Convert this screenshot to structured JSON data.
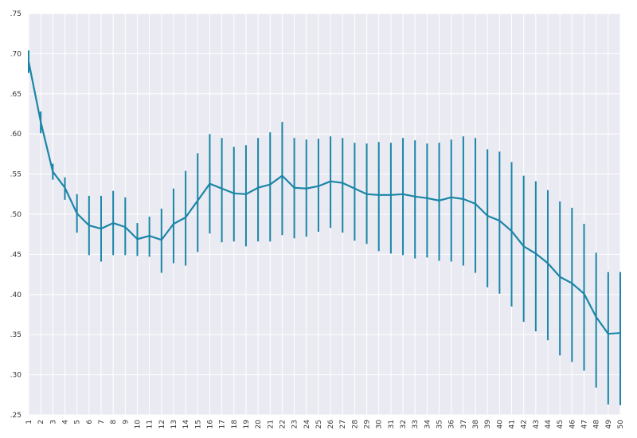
{
  "chart_data": {
    "type": "line",
    "title": "",
    "xlabel": "",
    "ylabel": "",
    "x": [
      1,
      2,
      3,
      4,
      5,
      6,
      7,
      8,
      9,
      10,
      11,
      12,
      13,
      14,
      15,
      16,
      17,
      18,
      19,
      20,
      21,
      22,
      23,
      24,
      25,
      26,
      27,
      28,
      29,
      30,
      31,
      32,
      33,
      34,
      35,
      36,
      37,
      38,
      39,
      40,
      41,
      42,
      43,
      44,
      45,
      46,
      47,
      48,
      49,
      50
    ],
    "x_tick_labels": [
      "1",
      "2",
      "3",
      "4",
      "5",
      "6",
      "7",
      "8",
      "9",
      "10",
      "11",
      "12",
      "13",
      "14",
      "15",
      "16",
      "17",
      "18",
      "19",
      "20",
      "21",
      "22",
      "23",
      "24",
      "25",
      "26",
      "27",
      "28",
      "29",
      "30",
      "31",
      "32",
      "33",
      "34",
      "35",
      "36",
      "37",
      "38",
      "39",
      "40",
      "41",
      "42",
      "43",
      "44",
      "45",
      "46",
      "47",
      "48",
      "49",
      "50"
    ],
    "ylim": [
      0.25,
      0.75
    ],
    "y_ticks": [
      0.25,
      0.3,
      0.35,
      0.4,
      0.45,
      0.5,
      0.55,
      0.6,
      0.65,
      0.7,
      0.75
    ],
    "y_tick_labels": [
      ".25",
      ".30",
      ".35",
      ".40",
      ".45",
      ".50",
      ".55",
      ".60",
      ".65",
      ".70",
      ".75"
    ],
    "grid": true,
    "series": [
      {
        "color": "#1a86a8",
        "mean": [
          0.69,
          0.615,
          0.553,
          0.533,
          0.501,
          0.486,
          0.482,
          0.489,
          0.484,
          0.469,
          0.473,
          0.468,
          0.488,
          0.496,
          0.517,
          0.538,
          0.532,
          0.526,
          0.525,
          0.533,
          0.537,
          0.548,
          0.533,
          0.532,
          0.535,
          0.541,
          0.539,
          0.532,
          0.525,
          0.524,
          0.524,
          0.525,
          0.522,
          0.52,
          0.517,
          0.521,
          0.519,
          0.513,
          0.498,
          0.492,
          0.479,
          0.46,
          0.451,
          0.439,
          0.422,
          0.414,
          0.401,
          0.372,
          0.351,
          0.352
        ],
        "lower": [
          0.676,
          0.601,
          0.543,
          0.518,
          0.477,
          0.449,
          0.441,
          0.449,
          0.449,
          0.448,
          0.447,
          0.427,
          0.439,
          0.436,
          0.453,
          0.476,
          0.465,
          0.466,
          0.46,
          0.466,
          0.466,
          0.474,
          0.47,
          0.472,
          0.478,
          0.483,
          0.477,
          0.467,
          0.463,
          0.454,
          0.451,
          0.449,
          0.445,
          0.446,
          0.442,
          0.441,
          0.436,
          0.427,
          0.409,
          0.401,
          0.385,
          0.366,
          0.354,
          0.343,
          0.324,
          0.316,
          0.305,
          0.284,
          0.263,
          0.262
        ],
        "upper": [
          0.704,
          0.628,
          0.563,
          0.546,
          0.525,
          0.523,
          0.523,
          0.529,
          0.521,
          0.489,
          0.497,
          0.507,
          0.532,
          0.554,
          0.576,
          0.6,
          0.595,
          0.584,
          0.586,
          0.595,
          0.602,
          0.615,
          0.595,
          0.593,
          0.594,
          0.597,
          0.595,
          0.589,
          0.588,
          0.59,
          0.589,
          0.595,
          0.592,
          0.588,
          0.589,
          0.593,
          0.597,
          0.595,
          0.581,
          0.578,
          0.565,
          0.548,
          0.541,
          0.53,
          0.516,
          0.508,
          0.488,
          0.452,
          0.428,
          0.428
        ]
      }
    ]
  }
}
